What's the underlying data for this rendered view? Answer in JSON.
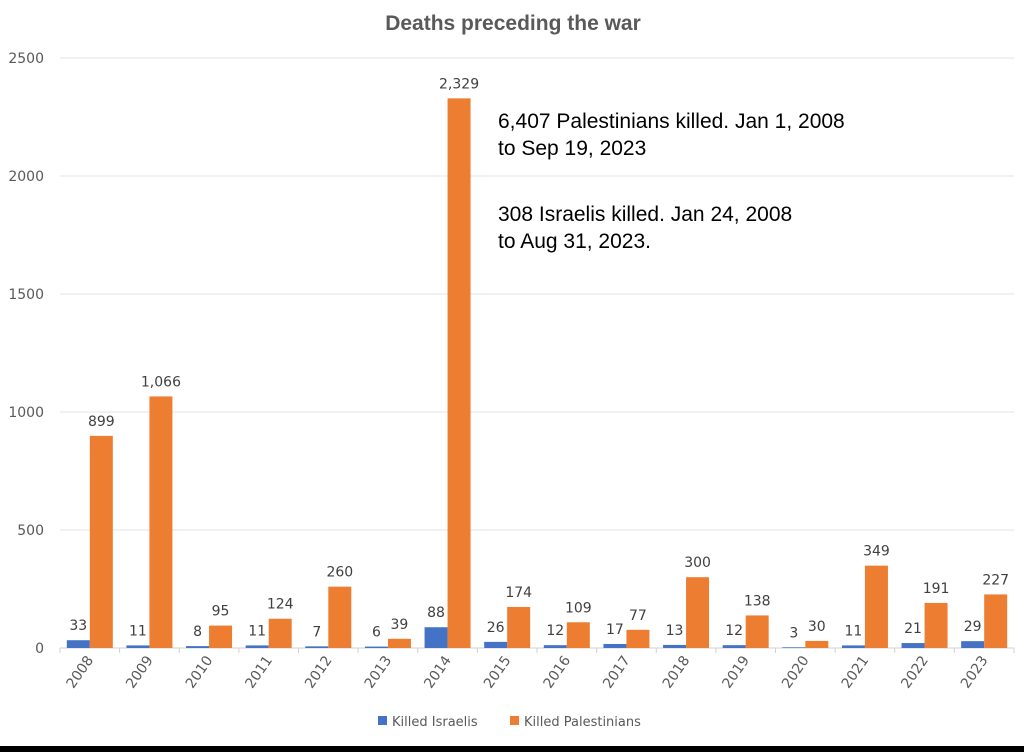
{
  "chart_data": {
    "type": "bar",
    "title": "Deaths preceding the war",
    "xlabel": "",
    "ylabel": "",
    "ylim": [
      0,
      2500
    ],
    "yticks": [
      "0",
      "500",
      "1000",
      "1500",
      "2000",
      "2500"
    ],
    "grid": true,
    "legend_position": "bottom",
    "categories": [
      "2008",
      "2009",
      "2010",
      "2011",
      "2012",
      "2013",
      "2014",
      "2015",
      "2016",
      "2017",
      "2018",
      "2019",
      "2020",
      "2021",
      "2022",
      "2023"
    ],
    "series": [
      {
        "name": "Killed Israelis",
        "color": "#4472C4",
        "values": [
          33,
          11,
          8,
          11,
          7,
          6,
          88,
          26,
          12,
          17,
          13,
          12,
          3,
          11,
          21,
          29
        ],
        "labels": [
          "33",
          "11",
          "8",
          "11",
          "7",
          "6",
          "88",
          "26",
          "12",
          "17",
          "13",
          "12",
          "3",
          "11",
          "21",
          "29"
        ]
      },
      {
        "name": "Killed Palestinians",
        "color": "#ED7D31",
        "values": [
          899,
          1066,
          95,
          124,
          260,
          39,
          2329,
          174,
          109,
          77,
          300,
          138,
          30,
          349,
          191,
          227
        ],
        "labels": [
          "899",
          "1,066",
          "95",
          "124",
          "260",
          "39",
          "2,329",
          "174",
          "109",
          "77",
          "300",
          "138",
          "30",
          "349",
          "191",
          "227"
        ]
      }
    ],
    "annotations": [
      [
        "6,407 Palestinians killed. Jan 1, 2008",
        "to Sep 19, 2023"
      ],
      [
        "308 Israelis killed. Jan 24, 2008",
        "to Aug 31, 2023."
      ]
    ]
  }
}
